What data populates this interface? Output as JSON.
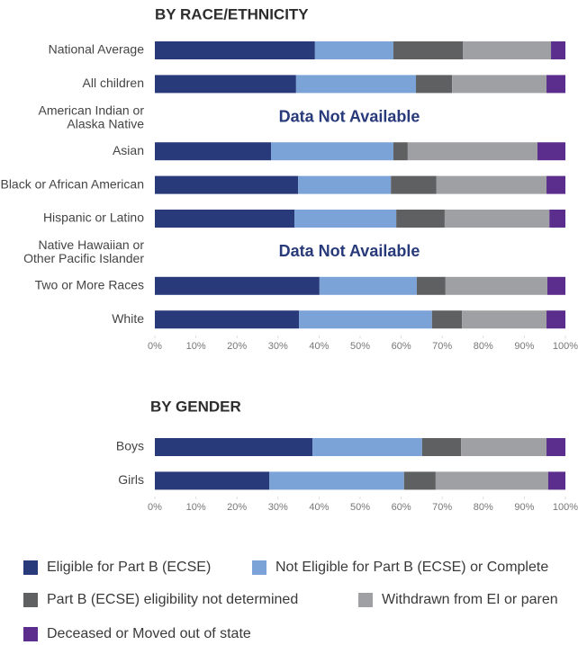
{
  "chart_data": [
    {
      "type": "stacked-bar-horizontal",
      "title": "BY RACE/ETHNICITY",
      "categories": [
        "National Average",
        "All children",
        "American Indian or\nAlaska Native",
        "Asian",
        "Black or African American",
        "Hispanic or Latino",
        "Native Hawaiian or\nOther Pacific Islander",
        "Two or More Races",
        "White"
      ],
      "series": [
        {
          "name": "Eligible for Part B (ECSE)",
          "color": "#283a7a",
          "values": [
            39.0,
            34.4,
            null,
            28.3,
            34.9,
            34.0,
            null,
            40.1,
            35.1
          ]
        },
        {
          "name": "Not Eligible for Part B (ECSE) or Complete",
          "color": "#7ba3d8",
          "values": [
            19.1,
            29.2,
            null,
            29.8,
            22.6,
            24.8,
            null,
            23.7,
            32.4
          ]
        },
        {
          "name": "Part B (ECSE) eligibility not determined",
          "color": "#5f6062",
          "values": [
            16.9,
            8.8,
            null,
            3.5,
            11.1,
            11.8,
            null,
            7.0,
            7.3
          ]
        },
        {
          "name": "Withdrawn from EI or paren",
          "color": "#9fa0a3",
          "values": [
            21.5,
            23.0,
            null,
            31.6,
            26.8,
            25.5,
            null,
            24.8,
            20.6
          ]
        },
        {
          "name": "Deceased or Moved out of state",
          "color": "#5b2d8c",
          "values": [
            3.5,
            4.6,
            null,
            6.8,
            4.6,
            3.9,
            null,
            4.4,
            4.6
          ]
        }
      ],
      "annotations": [
        "Data Not Available",
        "Data Not Available"
      ],
      "xlim": [
        0,
        100
      ],
      "xticks": [
        {
          "value": 0,
          "label": "0%"
        },
        {
          "value": 10,
          "label": "10%"
        },
        {
          "value": 20,
          "label": "20%"
        },
        {
          "value": 30,
          "label": "30%"
        },
        {
          "value": 40,
          "label": "40%"
        },
        {
          "value": 50,
          "label": "50%"
        },
        {
          "value": 60,
          "label": "60%"
        },
        {
          "value": 70,
          "label": "70%"
        },
        {
          "value": 80,
          "label": "80%"
        },
        {
          "value": 90,
          "label": "90%"
        },
        {
          "value": 100,
          "label": "100%"
        }
      ]
    },
    {
      "type": "stacked-bar-horizontal",
      "title": "BY GENDER",
      "categories": [
        "Boys",
        "Girls"
      ],
      "series": [
        {
          "values": [
            38.4,
            27.9
          ]
        },
        {
          "values": [
            26.7,
            32.8
          ]
        },
        {
          "values": [
            9.5,
            7.7
          ]
        },
        {
          "values": [
            20.8,
            27.4
          ]
        },
        {
          "values": [
            4.6,
            4.2
          ]
        }
      ],
      "xlim": [
        0,
        100
      ],
      "xticks": [
        {
          "value": 0,
          "label": "0%"
        },
        {
          "value": 10,
          "label": "10%"
        },
        {
          "value": 20,
          "label": "20%"
        },
        {
          "value": 30,
          "label": "30%"
        },
        {
          "value": 40,
          "label": "40%"
        },
        {
          "value": 50,
          "label": "50%"
        },
        {
          "value": 60,
          "label": "60%"
        },
        {
          "value": 70,
          "label": "70%"
        },
        {
          "value": 80,
          "label": "80%"
        },
        {
          "value": 90,
          "label": "90%"
        },
        {
          "value": 100,
          "label": "100%"
        }
      ]
    }
  ]
}
